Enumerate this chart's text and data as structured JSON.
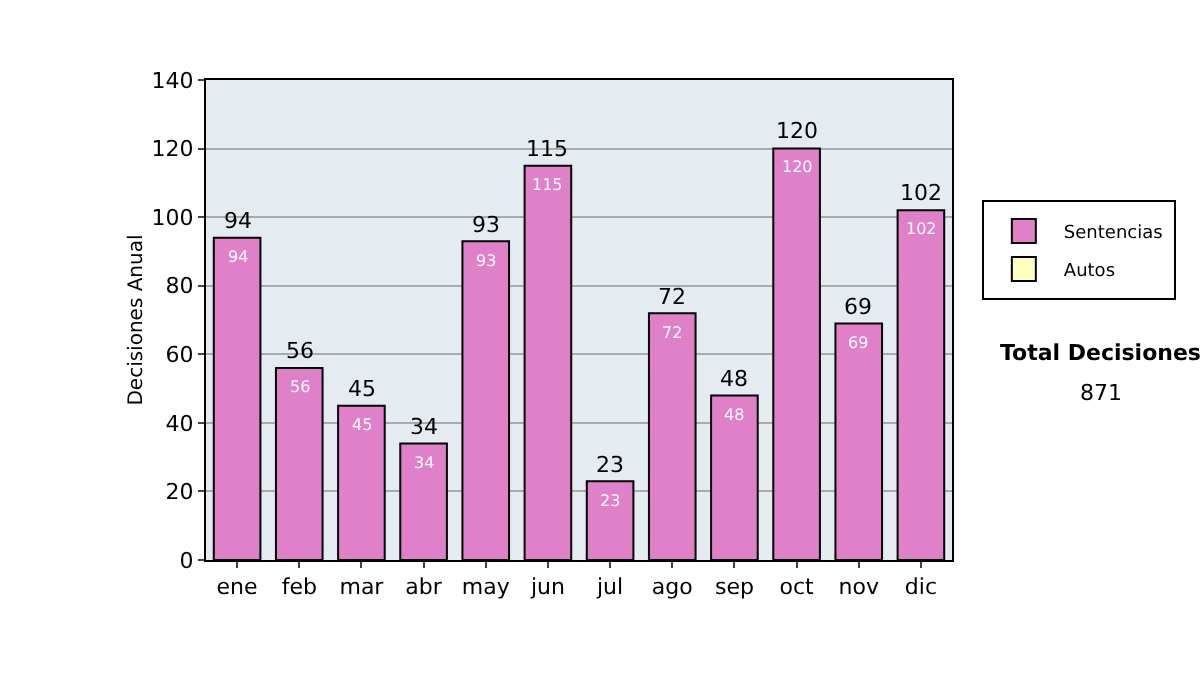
{
  "chart_data": {
    "type": "bar",
    "ylabel": "Decisiones Anual",
    "categories": [
      "ene",
      "feb",
      "mar",
      "abr",
      "may",
      "jun",
      "jul",
      "ago",
      "sep",
      "oct",
      "nov",
      "dic"
    ],
    "series": [
      {
        "name": "Sentencias",
        "color": "#e080c8",
        "values": [
          94,
          56,
          45,
          34,
          93,
          115,
          23,
          72,
          48,
          120,
          69,
          102
        ],
        "value_labels": [
          "94",
          "56",
          "45",
          "34",
          "93",
          "115",
          "23",
          "72",
          "48",
          "120",
          "69",
          "102"
        ]
      },
      {
        "name": "Autos",
        "color": "#ffffc0",
        "values": [
          null,
          null,
          null,
          null,
          null,
          null,
          null,
          null,
          null,
          null,
          null,
          null
        ]
      }
    ],
    "ylim": [
      0,
      140
    ],
    "yticks": [
      0,
      20,
      40,
      60,
      80,
      100,
      120,
      140
    ],
    "grid": "y",
    "legend": "right",
    "annotations": [
      "Total Decisiones",
      "871",
      {
        "text": "94",
        "x": "ene",
        "y": 94
      },
      {
        "text": "56",
        "x": "feb",
        "y": 56
      },
      {
        "text": "45",
        "x": "mar",
        "y": 45
      },
      {
        "text": "34",
        "x": "abr",
        "y": 34
      },
      {
        "text": "93",
        "x": "may",
        "y": 93
      },
      {
        "text": "115",
        "x": "jun",
        "y": 115
      },
      {
        "text": "23",
        "x": "jul",
        "y": 23
      },
      {
        "text": "72",
        "x": "ago",
        "y": 72
      },
      {
        "text": "48",
        "x": "sep",
        "y": 48
      },
      {
        "text": "120",
        "x": "oct",
        "y": 120
      },
      {
        "text": "69",
        "x": "nov",
        "y": 69
      },
      {
        "text": "102",
        "x": "dic",
        "y": 102
      }
    ]
  }
}
